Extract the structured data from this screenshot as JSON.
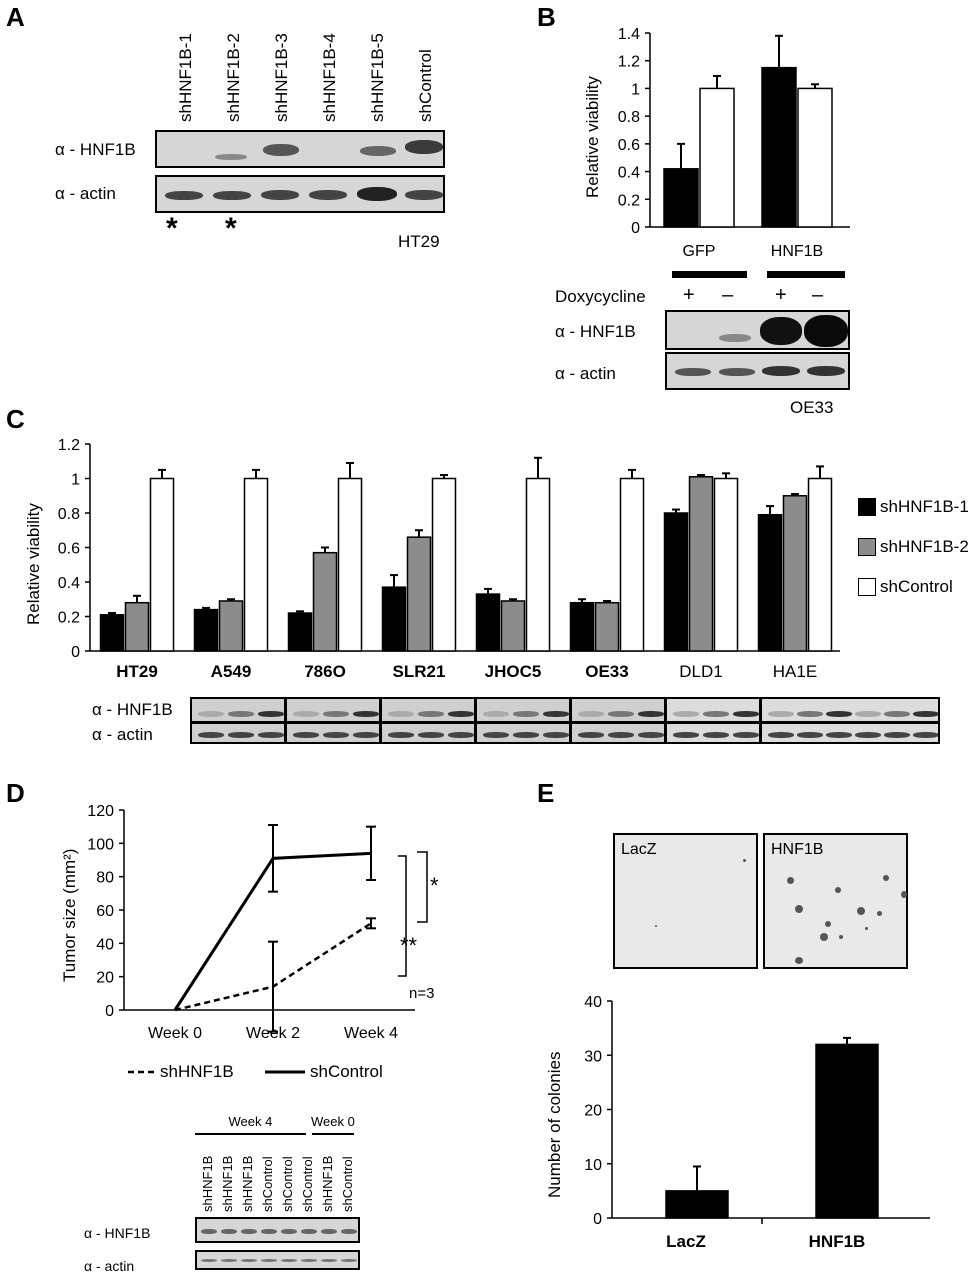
{
  "panels": {
    "A": {
      "label": "A",
      "lanes": [
        "shHNF1B-1",
        "shHNF1B-2",
        "shHNF1B-3",
        "shHNF1B-4",
        "shHNF1B-5",
        "shControl"
      ],
      "rows": [
        "α - HNF1B",
        "α - actin"
      ],
      "stars": [
        "*",
        "*"
      ],
      "cell_line": "HT29"
    },
    "B": {
      "label": "B",
      "groups": [
        "GFP",
        "HNF1B"
      ],
      "dox_label": "Doxycycline",
      "dox_marks": [
        "+",
        "–",
        "+",
        "–"
      ],
      "rows": [
        "α - HNF1B",
        "α - actin"
      ],
      "cell_line": "OE33"
    },
    "C": {
      "label": "C",
      "legend": [
        "shHNF1B-1",
        "shHNF1B-2",
        "shControl"
      ],
      "rows": [
        "α - HNF1B",
        "α - actin"
      ]
    },
    "D": {
      "label": "D",
      "n_label": "n=3",
      "sig_star": "*",
      "sig_dstar": "**",
      "legend": [
        "shHNF1B",
        "shControl"
      ],
      "blot_groups": [
        "Week 4",
        "Week 0"
      ],
      "blot_lanes": [
        "shHNF1B",
        "shHNF1B",
        "shHNF1B",
        "shControl",
        "shControl",
        "shControl",
        "shHNF1B",
        "shControl"
      ],
      "rows": [
        "α - HNF1B",
        "α - actin"
      ]
    },
    "E": {
      "label": "E",
      "well_labels": [
        "LacZ",
        "HNF1B"
      ]
    }
  },
  "chart_data": [
    {
      "id": "B",
      "type": "bar",
      "categories": [
        "GFP",
        "HNF1B"
      ],
      "series": [
        {
          "name": "+",
          "color": "#000000",
          "values": [
            0.42,
            1.15
          ],
          "errors": [
            0.18,
            0.23
          ]
        },
        {
          "name": "–",
          "color": "#ffffff",
          "values": [
            1.0,
            1.0
          ],
          "errors": [
            0.09,
            0.03
          ]
        }
      ],
      "ylabel": "Relative viability",
      "ylim": [
        0,
        1.4
      ],
      "yticks": [
        "0",
        "0.2",
        "0.4",
        "0.6",
        "0.8",
        "1",
        "1.2",
        "1.4"
      ]
    },
    {
      "id": "C",
      "type": "bar",
      "categories": [
        "HT29",
        "A549",
        "786O",
        "SLR21",
        "JHOC5",
        "OE33",
        "DLD1",
        "HA1E"
      ],
      "series": [
        {
          "name": "shHNF1B-1",
          "color": "#000000",
          "values": [
            0.21,
            0.24,
            0.22,
            0.37,
            0.33,
            0.28,
            0.8,
            0.79
          ],
          "errors": [
            0.01,
            0.01,
            0.01,
            0.07,
            0.03,
            0.02,
            0.02,
            0.05
          ]
        },
        {
          "name": "shHNF1B-2",
          "color": "#8c8c8c",
          "values": [
            0.28,
            0.29,
            0.57,
            0.66,
            0.29,
            0.28,
            1.01,
            0.9
          ],
          "errors": [
            0.04,
            0.01,
            0.03,
            0.04,
            0.01,
            0.01,
            0.01,
            0.01
          ]
        },
        {
          "name": "shControl",
          "color": "#ffffff",
          "values": [
            1.0,
            1.0,
            1.0,
            1.0,
            1.0,
            1.0,
            1.0,
            1.0
          ],
          "errors": [
            0.05,
            0.05,
            0.09,
            0.02,
            0.12,
            0.05,
            0.03,
            0.07
          ]
        }
      ],
      "ylabel": "Relative viability",
      "ylim": [
        0,
        1.2
      ],
      "yticks": [
        "0",
        "0.2",
        "0.4",
        "0.6",
        "0.8",
        "1",
        "1.2"
      ]
    },
    {
      "id": "D",
      "type": "line",
      "categories": [
        "Week 0",
        "Week 2",
        "Week 4"
      ],
      "series": [
        {
          "name": "shHNF1B",
          "dashed": true,
          "values": [
            0,
            14,
            52
          ],
          "errors": [
            0,
            27,
            3
          ]
        },
        {
          "name": "shControl",
          "dashed": false,
          "values": [
            0,
            91,
            94
          ],
          "errors": [
            0,
            20,
            16
          ]
        }
      ],
      "ylabel": "Tumor size (mm2)",
      "ylim": [
        0,
        120
      ],
      "yticks": [
        "0",
        "20",
        "40",
        "60",
        "80",
        "100",
        "120"
      ]
    },
    {
      "id": "E",
      "type": "bar",
      "categories": [
        "LacZ",
        "HNF1B"
      ],
      "values": [
        5,
        32
      ],
      "errors": [
        4.5,
        1.2
      ],
      "ylabel": "Number of colonies",
      "ylim": [
        0,
        40
      ],
      "yticks": [
        "0",
        "10",
        "20",
        "30",
        "40"
      ]
    }
  ]
}
